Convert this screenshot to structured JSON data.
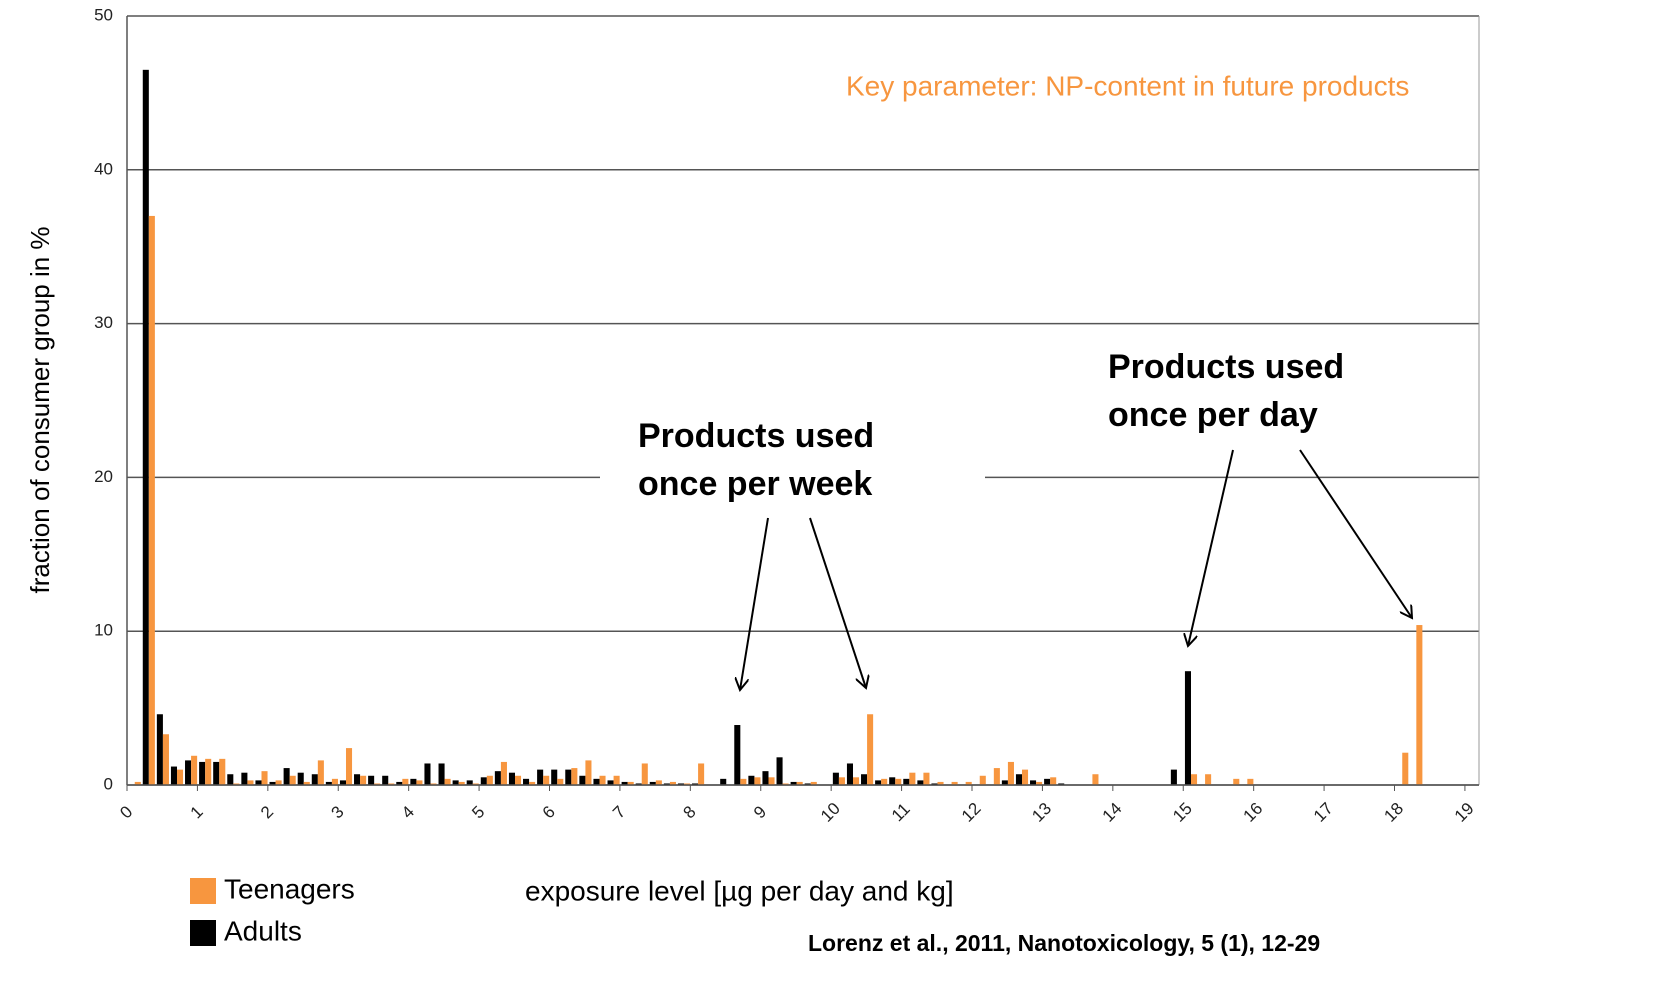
{
  "chart_data": {
    "type": "bar",
    "y_label": "fraction of consumer group in %",
    "x_label": "exposure level [µg per day and kg]",
    "annotations": [
      {
        "lines": [
          "Key parameter: NP-content in future products"
        ]
      },
      {
        "lines": [
          "Products used",
          "once per week"
        ]
      },
      {
        "lines": [
          "Products used",
          "once per day"
        ]
      }
    ],
    "source": "Lorenz et al., 2011, Nanotoxicology, 5 (1), 12-29",
    "x": [
      0,
      0.2,
      0.4,
      0.6,
      0.8,
      1.0,
      1.2,
      1.4,
      1.6,
      1.8,
      2.0,
      2.2,
      2.4,
      2.6,
      2.8,
      3.0,
      3.2,
      3.4,
      3.6,
      3.8,
      4.0,
      4.2,
      4.4,
      4.6,
      4.8,
      5.0,
      5.2,
      5.4,
      5.6,
      5.8,
      6.0,
      6.2,
      6.4,
      6.6,
      6.8,
      7.0,
      7.2,
      7.4,
      7.6,
      7.8,
      8.0,
      8.2,
      8.4,
      8.6,
      8.8,
      9.0,
      9.2,
      9.4,
      9.6,
      9.8,
      10.0,
      10.2,
      10.4,
      10.6,
      10.8,
      11.0,
      11.2,
      11.4,
      11.6,
      11.8,
      12.0,
      12.2,
      12.4,
      12.6,
      12.8,
      13.0,
      13.2,
      13.4,
      13.6,
      13.8,
      14.0,
      14.2,
      14.4,
      14.6,
      14.8,
      15.0,
      15.2,
      15.4,
      15.6,
      15.8,
      16.0,
      16.2,
      16.4,
      16.6,
      16.8,
      17.0,
      17.2,
      17.4,
      17.6,
      17.8,
      18.0,
      18.2,
      18.4,
      18.6,
      18.8,
      19.0
    ],
    "series": [
      {
        "name": "Adults",
        "color": "#000000",
        "values": [
          0,
          46.5,
          4.6,
          1.2,
          1.6,
          1.5,
          1.5,
          0.7,
          0.8,
          0.3,
          0.2,
          1.1,
          0.8,
          0.7,
          0.2,
          0.3,
          0.7,
          0.6,
          0.6,
          0.2,
          0.4,
          1.4,
          1.4,
          0.3,
          0.3,
          0.5,
          0.9,
          0.8,
          0.4,
          1.0,
          1.0,
          1.0,
          0.6,
          0.4,
          0.3,
          0.2,
          0.1,
          0.2,
          0.1,
          0.1,
          0.1,
          0,
          0.4,
          3.9,
          0.6,
          0.9,
          1.8,
          0.2,
          0.1,
          0,
          0.8,
          1.4,
          0.7,
          0.3,
          0.5,
          0.4,
          0.3,
          0.1,
          0,
          0,
          0,
          0,
          0.3,
          0.7,
          0.3,
          0.4,
          0.1,
          0,
          0,
          0,
          0,
          0,
          0,
          0,
          1.0,
          7.4,
          0,
          0,
          0,
          0,
          0,
          0,
          0,
          0,
          0,
          0,
          0,
          0,
          0,
          0,
          0,
          0,
          0,
          0,
          0,
          0
        ]
      },
      {
        "name": "Teenagers",
        "color": "#f7963f",
        "values": [
          0.2,
          37,
          3.3,
          1.0,
          1.9,
          1.7,
          1.7,
          0.1,
          0.3,
          0.9,
          0.3,
          0.6,
          0.2,
          1.6,
          0.4,
          2.4,
          0.6,
          0.1,
          0.1,
          0.4,
          0.3,
          0.1,
          0.4,
          0.2,
          0.1,
          0.6,
          1.5,
          0.6,
          0.2,
          0.6,
          0.4,
          1.1,
          1.6,
          0.6,
          0.6,
          0.2,
          1.4,
          0.3,
          0.2,
          0.1,
          1.4,
          0,
          0,
          0.4,
          0.5,
          0.5,
          0.1,
          0.2,
          0.2,
          0,
          0.5,
          0.5,
          4.6,
          0.4,
          0.4,
          0.8,
          0.8,
          0.2,
          0.2,
          0.2,
          0.6,
          1.1,
          1.5,
          1.0,
          0.2,
          0.5,
          0,
          0,
          0.7,
          0,
          0,
          0,
          0,
          0,
          0,
          0.7,
          0.7,
          0,
          0.4,
          0.4,
          0,
          0,
          0,
          0,
          0,
          0,
          0,
          0,
          0,
          0,
          2.1,
          10.4,
          0,
          0,
          0,
          0
        ]
      }
    ],
    "legend_order": [
      1,
      0
    ],
    "xlim": [
      0,
      19.2
    ],
    "xticks": [
      0,
      1,
      2,
      3,
      4,
      5,
      6,
      7,
      8,
      9,
      10,
      11,
      12,
      13,
      14,
      15,
      16,
      17,
      18,
      19
    ],
    "ylim": [
      0,
      50
    ],
    "yticks": [
      0,
      10,
      20,
      30,
      40,
      50
    ],
    "grid": true
  }
}
